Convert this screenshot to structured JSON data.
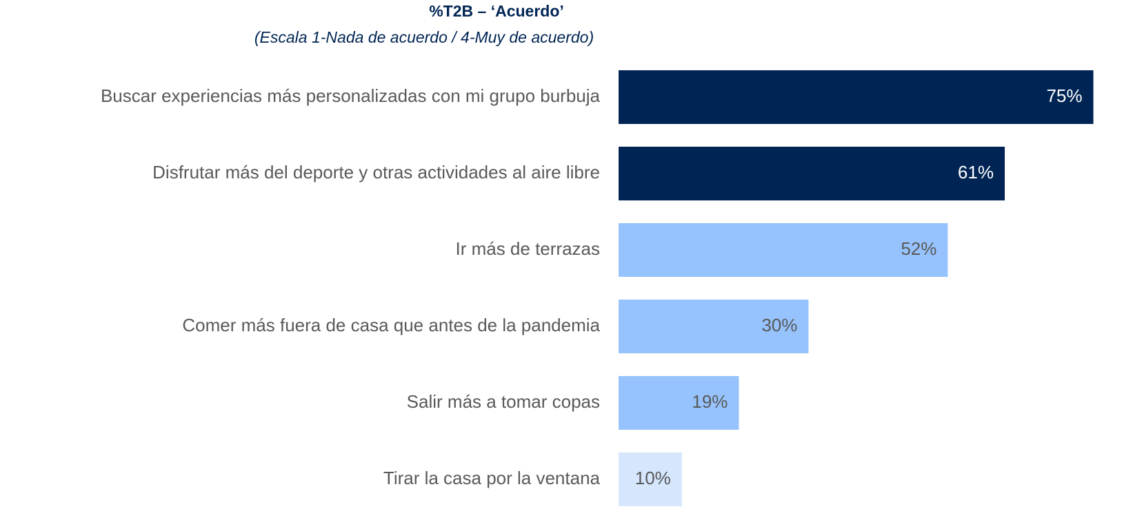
{
  "chart_data": {
    "type": "barh",
    "title": "%T2B – ‘Acuerdo’",
    "subtitle": "(Escala 1-Nada de acuerdo / 4-Muy de acuerdo)",
    "categories": [
      "Buscar experiencias más personalizadas con mi grupo burbuja",
      "Disfrutar más del deporte y otras actividades al aire libre",
      "Ir más de terrazas",
      "Comer más fuera de casa que antes de la pandemia",
      "Salir más a tomar copas",
      "Tirar la casa por la ventana"
    ],
    "values": [
      75,
      61,
      52,
      30,
      19,
      10
    ],
    "value_labels": [
      "75%",
      "61%",
      "52%",
      "30%",
      "19%",
      "10%"
    ],
    "colors": [
      "#002554",
      "#002554",
      "#96c3fd",
      "#96c3fd",
      "#96c3fd",
      "#d5e6fd"
    ],
    "label_colors": [
      "#ffffff",
      "#ffffff",
      "#595959",
      "#595959",
      "#595959",
      "#595959"
    ]
  }
}
